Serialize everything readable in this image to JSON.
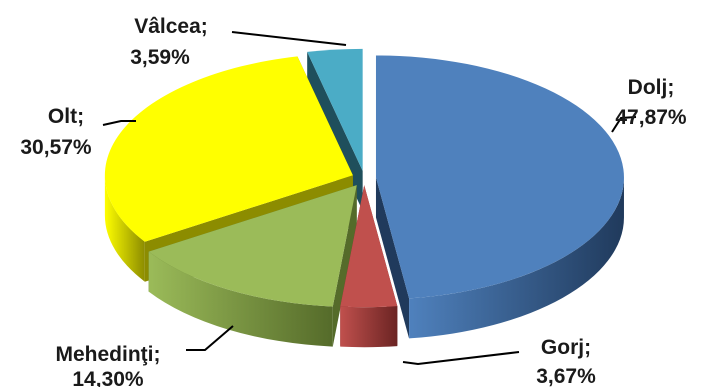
{
  "chart_data": {
    "type": "pie",
    "three_d": true,
    "exploded": true,
    "legend": "none",
    "slices": [
      {
        "name": "Dolj",
        "label": "Dolj;",
        "pct_label": "47,87%",
        "value": 47.87,
        "color": "#4f81bd",
        "dark": "#203a5c"
      },
      {
        "name": "Gorj",
        "label": "Gorj;",
        "pct_label": "3,67%",
        "value": 3.67,
        "color": "#c0504d",
        "dark": "#6b2423"
      },
      {
        "name": "Mehedinți",
        "label": "Mehedinţi;",
        "pct_label": "14,30%",
        "value": 14.3,
        "color": "#9bbb59",
        "dark": "#556b2a"
      },
      {
        "name": "Olt",
        "label": "Olt;",
        "pct_label": "30,57%",
        "value": 30.57,
        "color": "#ffff00",
        "dark": "#8c8c00"
      },
      {
        "name": "Vâlcea",
        "label": "Vâlcea;",
        "pct_label": "3,59%",
        "value": 3.59,
        "color": "#4bacc6",
        "dark": "#1f4f5c"
      }
    ]
  }
}
